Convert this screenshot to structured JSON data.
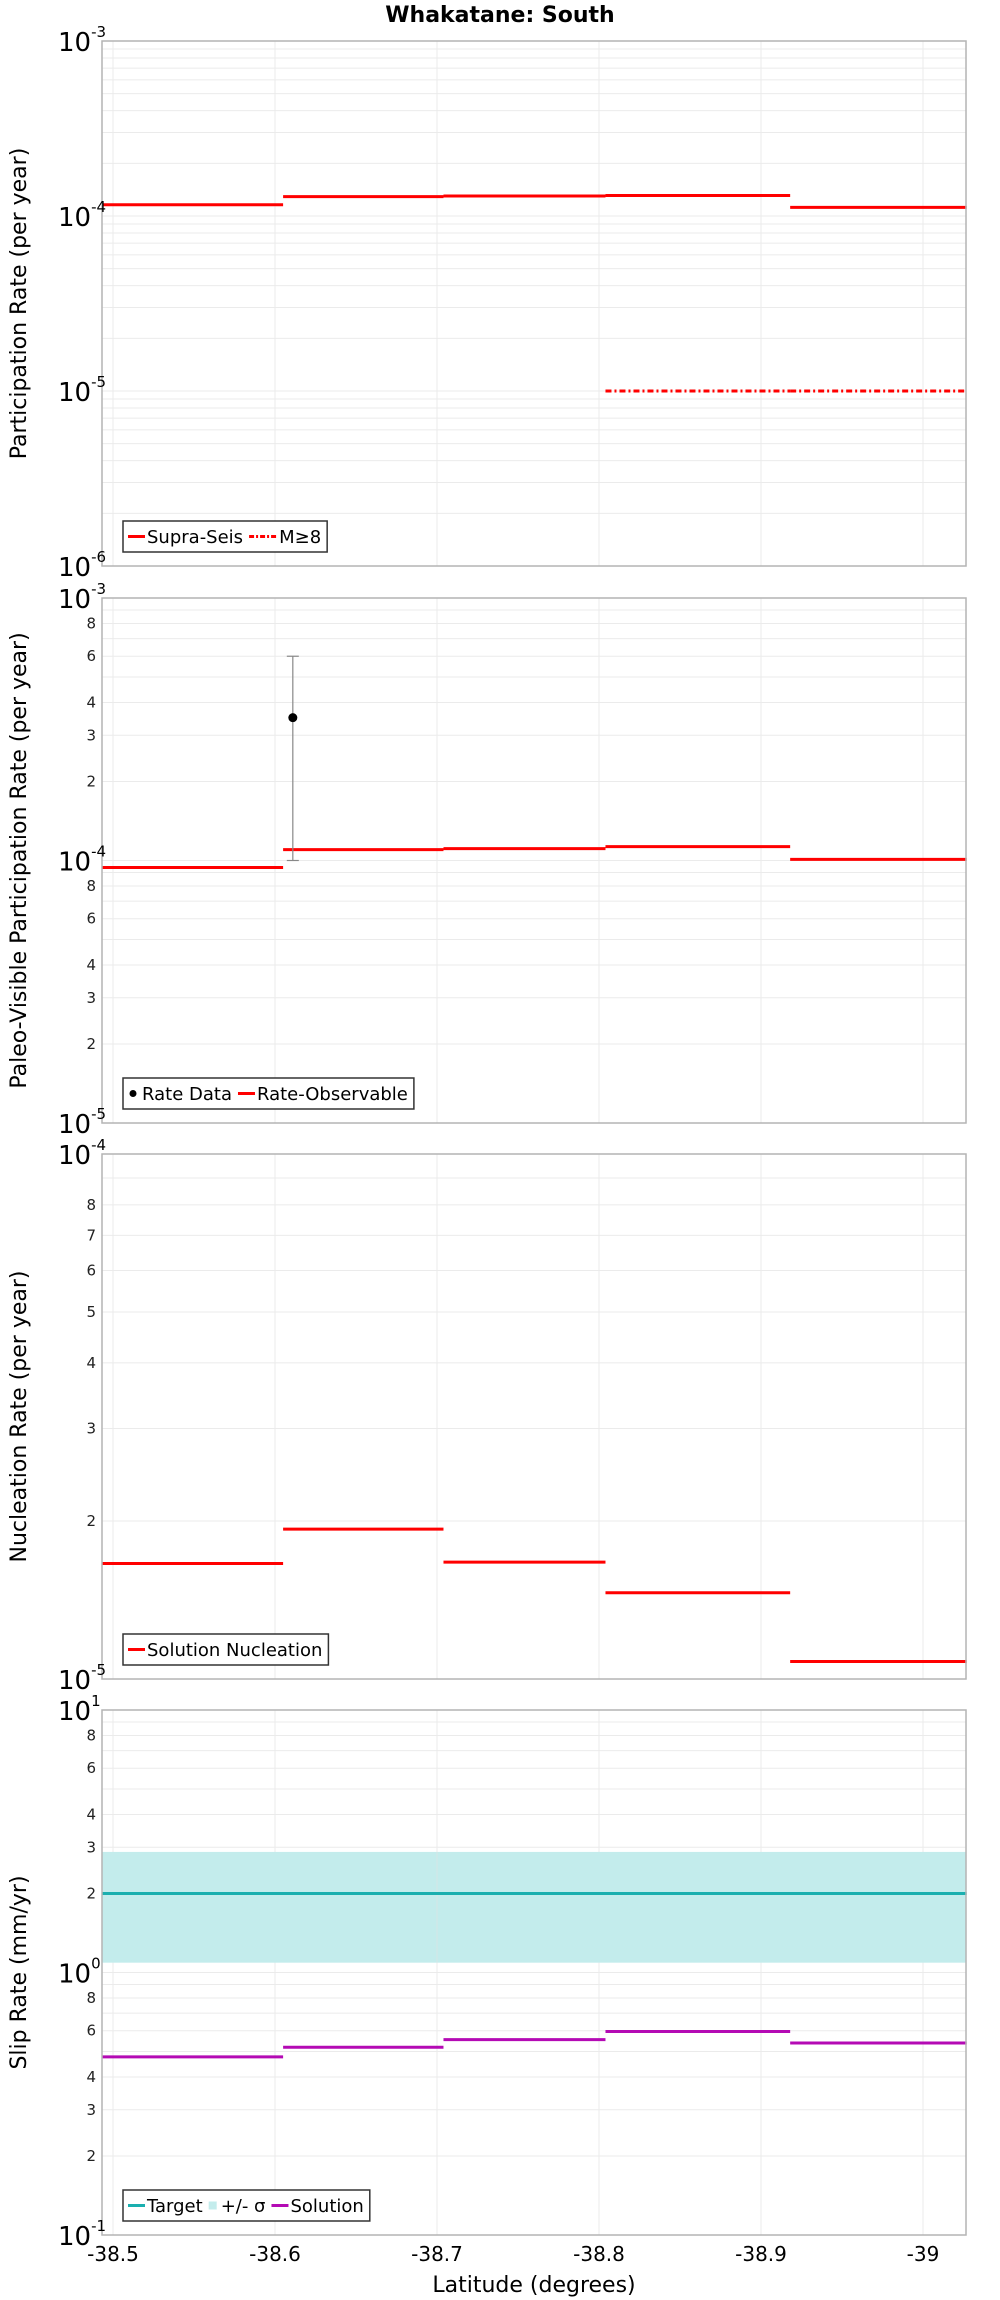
{
  "chart_data": {
    "title": "Whakatane: South",
    "xlabel": "Latitude (degrees)",
    "xlim": [
      -38.493,
      -39.027
    ],
    "x_ticks": [
      -38.5,
      -38.6,
      -38.7,
      -38.8,
      -38.9,
      -39.0
    ],
    "x_tick_labels": [
      "-38.5",
      "-38.6",
      "-38.7",
      "-38.8",
      "-38.9",
      "-39"
    ],
    "grid": true,
    "segment_bounds": [
      -38.493,
      -38.605,
      -38.704,
      -38.804,
      -38.918,
      -39.027
    ],
    "panels": [
      {
        "type": "line",
        "ylabel": "Participation Rate (per year)",
        "yscale": "log",
        "ylim": [
          1e-06,
          0.001
        ],
        "major_tick_labels": [
          {
            "v": 0.001,
            "base": "10",
            "exp": "-3"
          },
          {
            "v": 0.0001,
            "base": "10",
            "exp": "-4"
          },
          {
            "v": 1e-05,
            "base": "10",
            "exp": "-5"
          },
          {
            "v": 1e-06,
            "base": "10",
            "exp": "-6"
          }
        ],
        "minor_tick_labels": [],
        "legend_position": "lower left",
        "series": [
          {
            "name": "Supra-Seis",
            "style": "solid",
            "color": "#ff0000",
            "segments": [
              {
                "x0": -38.493,
                "x1": -38.605,
                "y": 0.000116
              },
              {
                "x0": -38.605,
                "x1": -38.704,
                "y": 0.000129
              },
              {
                "x0": -38.704,
                "x1": -38.804,
                "y": 0.00013
              },
              {
                "x0": -38.804,
                "x1": -38.918,
                "y": 0.000131
              },
              {
                "x0": -38.918,
                "x1": -39.027,
                "y": 0.000112
              }
            ]
          },
          {
            "name": "M≥8",
            "style": "dashdot",
            "color": "#ff0000",
            "segments": [
              {
                "x0": -38.804,
                "x1": -38.918,
                "y": 1e-05
              },
              {
                "x0": -38.918,
                "x1": -39.027,
                "y": 1e-05
              }
            ]
          }
        ],
        "legend": [
          {
            "kind": "line",
            "label": "Supra-Seis",
            "color": "#ff0000"
          },
          {
            "kind": "dashdot",
            "label": "M≥8",
            "color": "#ff0000"
          }
        ]
      },
      {
        "type": "line",
        "ylabel": "Paleo-Visible Participation Rate (per year)",
        "yscale": "log",
        "ylim": [
          1e-05,
          0.001
        ],
        "major_tick_labels": [
          {
            "v": 0.001,
            "base": "10",
            "exp": "-3"
          },
          {
            "v": 0.0001,
            "base": "10",
            "exp": "-4"
          },
          {
            "v": 1e-05,
            "base": "10",
            "exp": "-5"
          }
        ],
        "minor_tick_labels": [
          {
            "v": 0.0008,
            "t": "8"
          },
          {
            "v": 0.0006,
            "t": "6"
          },
          {
            "v": 0.0004,
            "t": "4"
          },
          {
            "v": 0.0003,
            "t": "3"
          },
          {
            "v": 0.0002,
            "t": "2"
          },
          {
            "v": 8e-05,
            "t": "8"
          },
          {
            "v": 6e-05,
            "t": "6"
          },
          {
            "v": 4e-05,
            "t": "4"
          },
          {
            "v": 3e-05,
            "t": "3"
          },
          {
            "v": 2e-05,
            "t": "2"
          }
        ],
        "legend_position": "lower left",
        "series": [
          {
            "name": "Rate-Observable",
            "style": "solid",
            "color": "#ff0000",
            "segments": [
              {
                "x0": -38.493,
                "x1": -38.605,
                "y": 9.4e-05
              },
              {
                "x0": -38.605,
                "x1": -38.704,
                "y": 0.00011
              },
              {
                "x0": -38.704,
                "x1": -38.804,
                "y": 0.000111
              },
              {
                "x0": -38.804,
                "x1": -38.918,
                "y": 0.000113
              },
              {
                "x0": -38.918,
                "x1": -39.027,
                "y": 0.000101
              }
            ]
          }
        ],
        "points": [
          {
            "name": "Rate Data",
            "x": -38.611,
            "y": 0.00035,
            "y_low": 0.0001,
            "y_high": 0.0006,
            "color": "#000000"
          }
        ],
        "legend": [
          {
            "kind": "dot",
            "label": "Rate Data",
            "color": "#000000"
          },
          {
            "kind": "line",
            "label": "Rate-Observable",
            "color": "#ff0000"
          }
        ]
      },
      {
        "type": "line",
        "ylabel": "Nucleation Rate (per year)",
        "yscale": "log",
        "ylim": [
          1e-05,
          0.0001
        ],
        "major_tick_labels": [
          {
            "v": 0.0001,
            "base": "10",
            "exp": "-4"
          },
          {
            "v": 1e-05,
            "base": "10",
            "exp": "-5"
          }
        ],
        "minor_tick_labels": [
          {
            "v": 8e-05,
            "t": "8"
          },
          {
            "v": 7e-05,
            "t": "7"
          },
          {
            "v": 6e-05,
            "t": "6"
          },
          {
            "v": 5e-05,
            "t": "5"
          },
          {
            "v": 4e-05,
            "t": "4"
          },
          {
            "v": 3e-05,
            "t": "3"
          },
          {
            "v": 2e-05,
            "t": "2"
          }
        ],
        "legend_position": "lower left",
        "series": [
          {
            "name": "Solution Nucleation",
            "style": "solid",
            "color": "#ff0000",
            "segments": [
              {
                "x0": -38.493,
                "x1": -38.605,
                "y": 1.66e-05
              },
              {
                "x0": -38.605,
                "x1": -38.704,
                "y": 1.93e-05
              },
              {
                "x0": -38.704,
                "x1": -38.804,
                "y": 1.67e-05
              },
              {
                "x0": -38.804,
                "x1": -38.918,
                "y": 1.46e-05
              },
              {
                "x0": -38.918,
                "x1": -39.027,
                "y": 1.08e-05
              }
            ]
          }
        ],
        "legend": [
          {
            "kind": "line",
            "label": "Solution Nucleation",
            "color": "#ff0000"
          }
        ]
      },
      {
        "type": "line",
        "ylabel": "Slip Rate (mm/yr)",
        "yscale": "log",
        "ylim": [
          0.1,
          10
        ],
        "major_tick_labels": [
          {
            "v": 10,
            "base": "10",
            "exp": "1"
          },
          {
            "v": 1,
            "base": "10",
            "exp": "0"
          },
          {
            "v": 0.1,
            "base": "10",
            "exp": "-1"
          }
        ],
        "minor_tick_labels": [
          {
            "v": 8,
            "t": "8"
          },
          {
            "v": 6,
            "t": "6"
          },
          {
            "v": 4,
            "t": "4"
          },
          {
            "v": 3,
            "t": "3"
          },
          {
            "v": 2,
            "t": "2"
          },
          {
            "v": 0.8,
            "t": "8"
          },
          {
            "v": 0.6,
            "t": "6"
          },
          {
            "v": 0.4,
            "t": "4"
          },
          {
            "v": 0.3,
            "t": "3"
          },
          {
            "v": 0.2,
            "t": "2"
          }
        ],
        "legend_position": "lower left",
        "band": {
          "name": "+/- σ",
          "y_low": 1.09,
          "y_high": 2.88,
          "color": "#c3ecec"
        },
        "series": [
          {
            "name": "Target",
            "style": "solid",
            "color": "#1aafaf",
            "segments": [
              {
                "x0": -38.493,
                "x1": -39.027,
                "y": 2.0
              }
            ]
          },
          {
            "name": "Solution",
            "style": "solid",
            "color": "#b40ab4",
            "segments": [
              {
                "x0": -38.493,
                "x1": -38.605,
                "y": 0.477
              },
              {
                "x0": -38.605,
                "x1": -38.704,
                "y": 0.519
              },
              {
                "x0": -38.704,
                "x1": -38.804,
                "y": 0.555
              },
              {
                "x0": -38.804,
                "x1": -38.918,
                "y": 0.596
              },
              {
                "x0": -38.918,
                "x1": -39.027,
                "y": 0.539
              }
            ]
          }
        ],
        "legend": [
          {
            "kind": "line",
            "label": "Target",
            "color": "#1aafaf"
          },
          {
            "kind": "square",
            "label": "+/- σ",
            "color": "#c3ecec"
          },
          {
            "kind": "line",
            "label": "Solution",
            "color": "#b40ab4"
          }
        ]
      }
    ]
  }
}
